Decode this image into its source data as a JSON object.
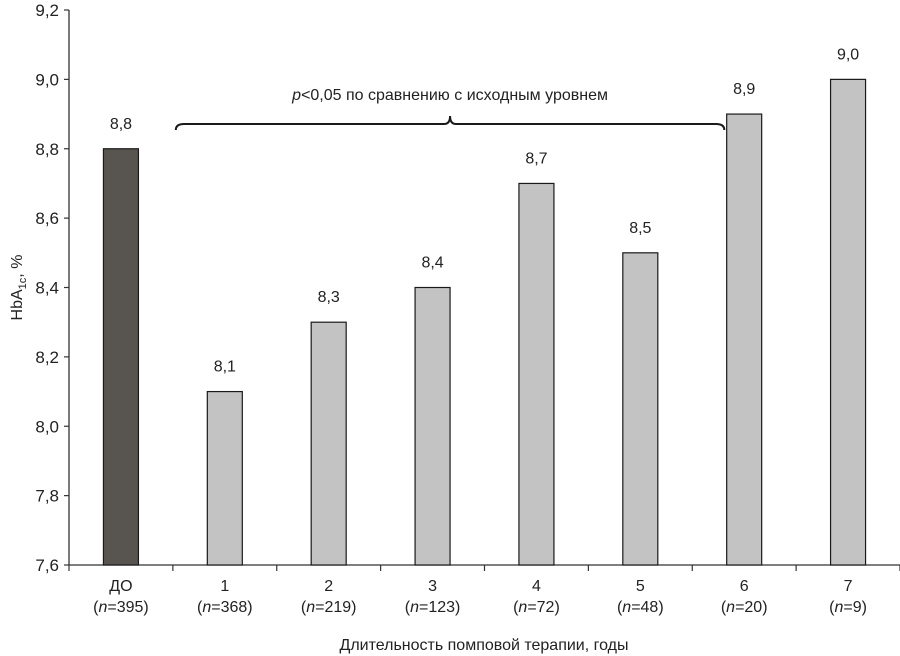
{
  "chart_data": {
    "type": "bar",
    "title": "",
    "xlabel": "Длительность помповой терапии, годы",
    "ylabel": {
      "main": "HbA",
      "sub": "1c",
      "suffix": ", %"
    },
    "ylim": [
      7.6,
      9.2
    ],
    "yticks": [
      {
        "v": 7.6,
        "label": "7,6"
      },
      {
        "v": 7.8,
        "label": "7,8"
      },
      {
        "v": 8.0,
        "label": "8,0"
      },
      {
        "v": 8.2,
        "label": "8,2"
      },
      {
        "v": 8.4,
        "label": "8,4"
      },
      {
        "v": 8.6,
        "label": "8,6"
      },
      {
        "v": 8.8,
        "label": "8,8"
      },
      {
        "v": 9.0,
        "label": "9,0"
      },
      {
        "v": 9.2,
        "label": "9,2"
      }
    ],
    "categories": [
      {
        "name": "ДО",
        "n_prefix": "(",
        "n_var": "n",
        "n_value": "=395)",
        "value": 8.8,
        "value_label": "8,8",
        "color": "#58544f"
      },
      {
        "name": "1",
        "n_prefix": "(",
        "n_var": "n",
        "n_value": "=368)",
        "value": 8.1,
        "value_label": "8,1",
        "color": "#c3c3c3"
      },
      {
        "name": "2",
        "n_prefix": "(",
        "n_var": "n",
        "n_value": "=219)",
        "value": 8.3,
        "value_label": "8,3",
        "color": "#c3c3c3"
      },
      {
        "name": "3",
        "n_prefix": "(",
        "n_var": "n",
        "n_value": "=123)",
        "value": 8.4,
        "value_label": "8,4",
        "color": "#c3c3c3"
      },
      {
        "name": "4",
        "n_prefix": "(",
        "n_var": "n",
        "n_value": "=72)",
        "value": 8.7,
        "value_label": "8,7",
        "color": "#c3c3c3"
      },
      {
        "name": "5",
        "n_prefix": "(",
        "n_var": "n",
        "n_value": "=48)",
        "value": 8.5,
        "value_label": "8,5",
        "color": "#c3c3c3"
      },
      {
        "name": "6",
        "n_prefix": "(",
        "n_var": "n",
        "n_value": "=20)",
        "value": 8.9,
        "value_label": "8,9",
        "color": "#c3c3c3"
      },
      {
        "name": "7",
        "n_prefix": "(",
        "n_var": "n",
        "n_value": "=9)",
        "value": 9.0,
        "value_label": "9,0",
        "color": "#c3c3c3"
      }
    ],
    "annotation": {
      "p_var": "p",
      "text": "<0,05 по сравнению с исходным уровнем",
      "from_category": 1,
      "to_category": 5
    },
    "grid": false,
    "legend": "none"
  }
}
